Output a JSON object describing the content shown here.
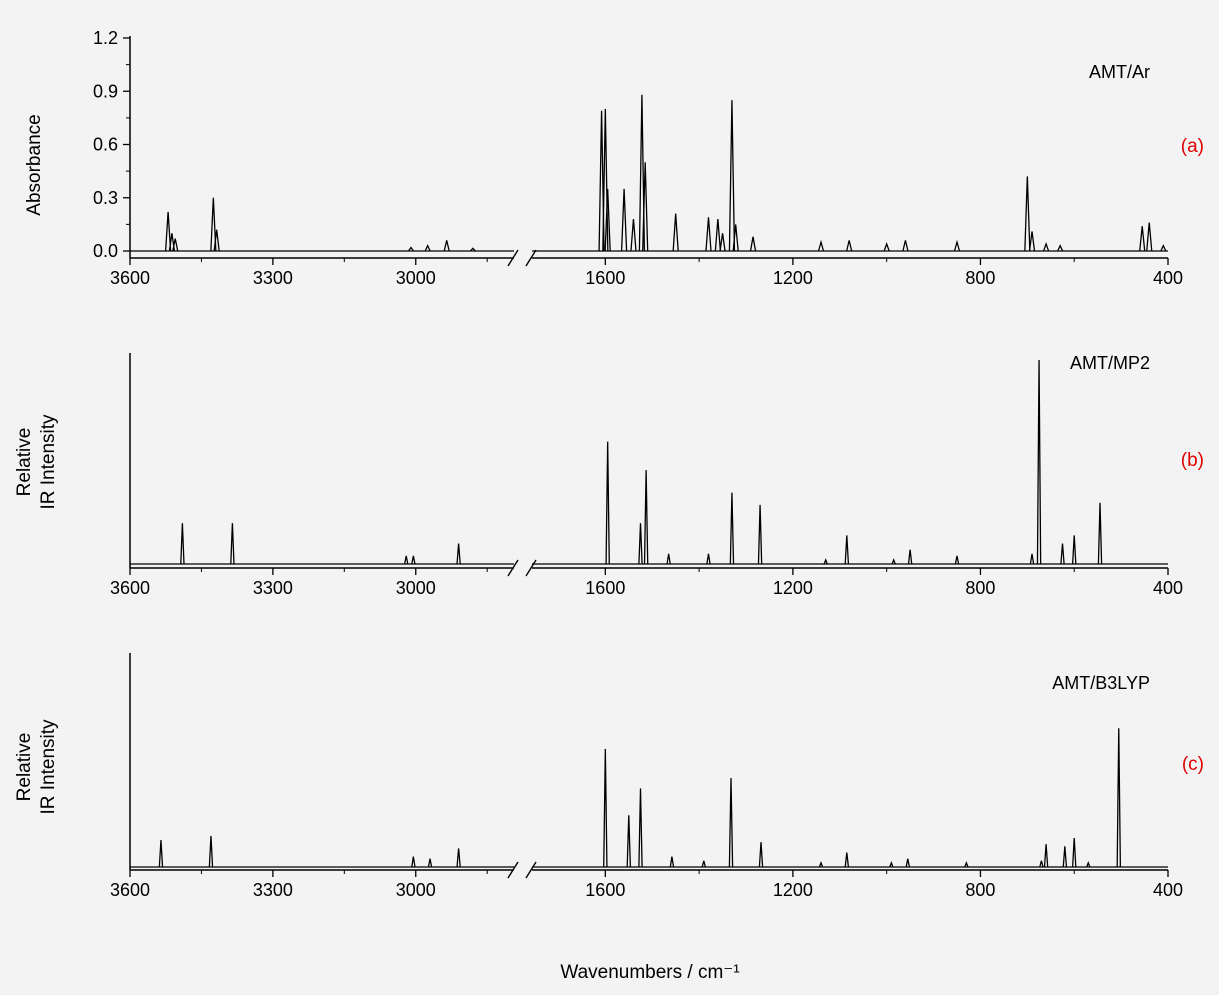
{
  "chart_data": [
    {
      "type": "line",
      "panel_label": "(a)",
      "series": [
        {
          "name": "AMT/Ar"
        }
      ],
      "ylabel": "Absorbance",
      "xlabel": "",
      "ylim": [
        -0.05,
        1.2
      ],
      "yticks": [
        0.0,
        0.3,
        0.6,
        0.9,
        1.2
      ],
      "ytick_labels": [
        "0.0",
        "0.3",
        "0.6",
        "0.9",
        "1.2"
      ],
      "xticks": [
        3600,
        3300,
        3000,
        1600,
        1200,
        800,
        400
      ],
      "xtick_labels": [
        "3600",
        "3300",
        "3000",
        "1600",
        "1200",
        "800",
        "400"
      ],
      "x_segments": [
        [
          3600,
          2800
        ],
        [
          1750,
          400
        ]
      ],
      "peaks": [
        [
          3520,
          0.22
        ],
        [
          3512,
          0.1
        ],
        [
          3505,
          0.07
        ],
        [
          3425,
          0.3
        ],
        [
          3418,
          0.12
        ],
        [
          3010,
          0.02
        ],
        [
          2975,
          0.03
        ],
        [
          2935,
          0.06
        ],
        [
          2880,
          0.015
        ],
        [
          1608,
          0.79
        ],
        [
          1600,
          0.8
        ],
        [
          1595,
          0.35
        ],
        [
          1560,
          0.35
        ],
        [
          1540,
          0.18
        ],
        [
          1522,
          0.88
        ],
        [
          1515,
          0.5
        ],
        [
          1450,
          0.21
        ],
        [
          1380,
          0.19
        ],
        [
          1360,
          0.18
        ],
        [
          1350,
          0.1
        ],
        [
          1330,
          0.85
        ],
        [
          1322,
          0.15
        ],
        [
          1285,
          0.08
        ],
        [
          1140,
          0.05
        ],
        [
          1080,
          0.06
        ],
        [
          1000,
          0.04
        ],
        [
          960,
          0.06
        ],
        [
          850,
          0.05
        ],
        [
          700,
          0.42
        ],
        [
          690,
          0.11
        ],
        [
          660,
          0.04
        ],
        [
          630,
          0.03
        ],
        [
          455,
          0.14
        ],
        [
          440,
          0.16
        ],
        [
          410,
          0.03
        ]
      ]
    },
    {
      "type": "line",
      "panel_label": "(b)",
      "series": [
        {
          "name": "AMT/MP2"
        }
      ],
      "ylabel": "Relative IR Intensity",
      "xlabel": "",
      "ylim": [
        0,
        1
      ],
      "yticks": [],
      "xticks": [
        3600,
        3300,
        3000,
        1600,
        1200,
        800,
        400
      ],
      "xtick_labels": [
        "3600",
        "3300",
        "3000",
        "1600",
        "1200",
        "800",
        "400"
      ],
      "x_segments": [
        [
          3600,
          2800
        ],
        [
          1750,
          400
        ]
      ],
      "peaks": [
        [
          3490,
          0.2
        ],
        [
          3385,
          0.2
        ],
        [
          3020,
          0.04
        ],
        [
          3005,
          0.04
        ],
        [
          2910,
          0.1
        ],
        [
          1595,
          0.6
        ],
        [
          1525,
          0.2
        ],
        [
          1513,
          0.46
        ],
        [
          1465,
          0.05
        ],
        [
          1380,
          0.05
        ],
        [
          1330,
          0.35
        ],
        [
          1270,
          0.29
        ],
        [
          1130,
          0.02
        ],
        [
          1085,
          0.14
        ],
        [
          985,
          0.02
        ],
        [
          950,
          0.07
        ],
        [
          850,
          0.04
        ],
        [
          690,
          0.05
        ],
        [
          675,
          1.0
        ],
        [
          625,
          0.1
        ],
        [
          600,
          0.14
        ],
        [
          545,
          0.3
        ]
      ]
    },
    {
      "type": "line",
      "panel_label": "(c)",
      "series": [
        {
          "name": "AMT/B3LYP"
        }
      ],
      "ylabel": "Relative IR Intensity",
      "xlabel": "Wavenumbers / cm⁻¹",
      "ylim": [
        0,
        1
      ],
      "yticks": [],
      "xticks": [
        3600,
        3300,
        3000,
        1600,
        1200,
        800,
        400
      ],
      "xtick_labels": [
        "3600",
        "3300",
        "3000",
        "1600",
        "1200",
        "800",
        "400"
      ],
      "x_segments": [
        [
          3600,
          2800
        ],
        [
          1750,
          400
        ]
      ],
      "peaks": [
        [
          3535,
          0.13
        ],
        [
          3430,
          0.15
        ],
        [
          3005,
          0.05
        ],
        [
          2970,
          0.04
        ],
        [
          2910,
          0.09
        ],
        [
          1600,
          0.57
        ],
        [
          1550,
          0.25
        ],
        [
          1525,
          0.38
        ],
        [
          1458,
          0.05
        ],
        [
          1390,
          0.03
        ],
        [
          1332,
          0.43
        ],
        [
          1268,
          0.12
        ],
        [
          1140,
          0.02
        ],
        [
          1085,
          0.07
        ],
        [
          990,
          0.02
        ],
        [
          955,
          0.04
        ],
        [
          830,
          0.02
        ],
        [
          670,
          0.03
        ],
        [
          660,
          0.11
        ],
        [
          620,
          0.1
        ],
        [
          600,
          0.14
        ],
        [
          570,
          0.02
        ],
        [
          505,
          0.67
        ]
      ]
    }
  ],
  "colors": {
    "line": "#000000",
    "panel_label": "#e00000",
    "background": "#f3f3f3"
  }
}
